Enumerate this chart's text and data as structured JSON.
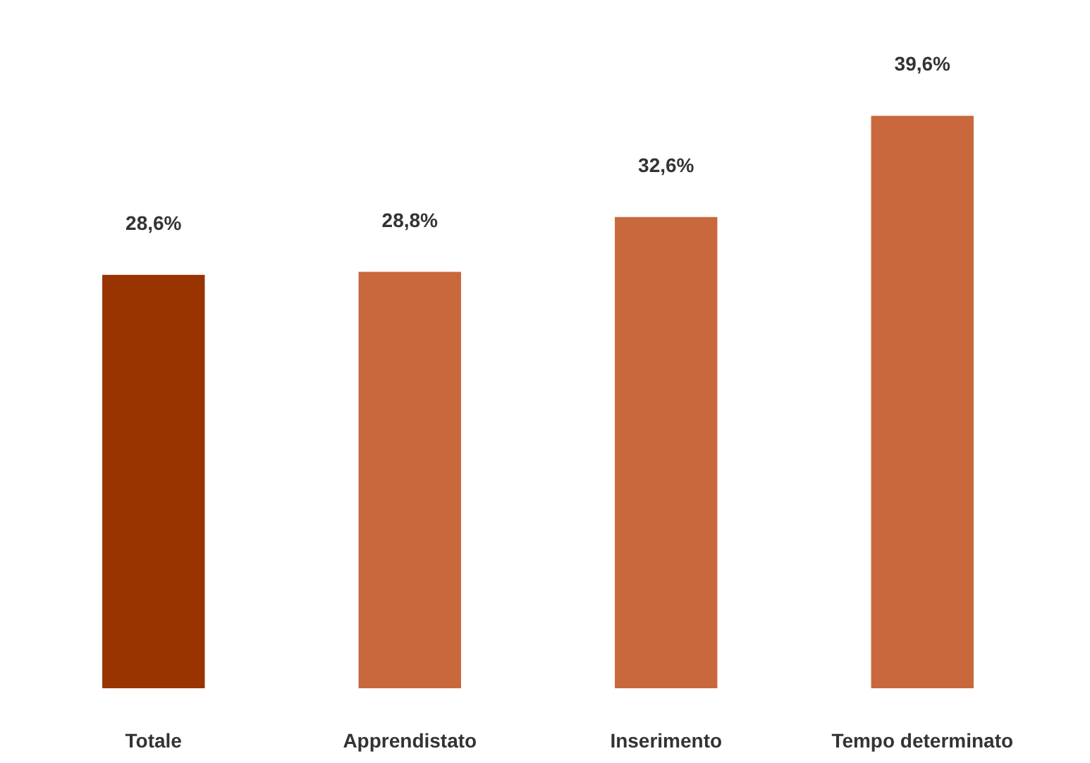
{
  "chart_data": {
    "type": "bar",
    "categories": [
      "Totale",
      "Apprendistato",
      "Inserimento",
      "Tempo determinato"
    ],
    "values": [
      28.6,
      28.8,
      32.6,
      39.6
    ],
    "colors": [
      "#993300",
      "#c8683c",
      "#c8683c",
      "#c8683c"
    ],
    "value_labels": [
      "28,6%",
      "28,8%",
      "32,6%",
      "39,6%"
    ]
  }
}
